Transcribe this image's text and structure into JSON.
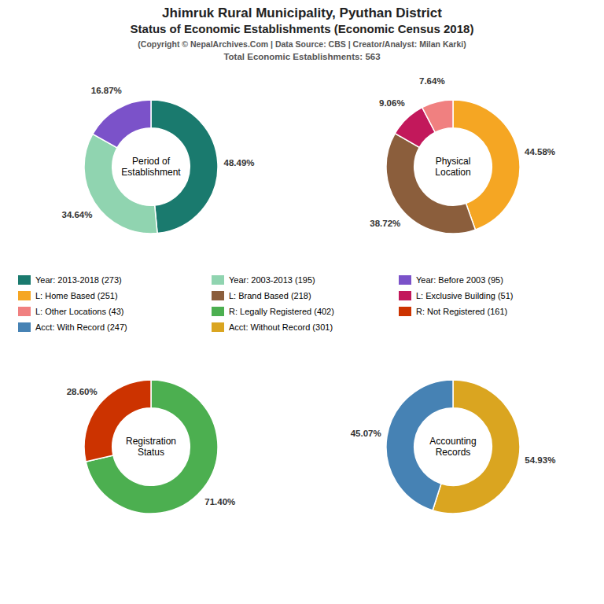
{
  "title": [
    "Jhimruk Rural Municipality, Pyuthan District",
    "Status of Economic Establishments (Economic Census 2018)"
  ],
  "subtitle": [
    "(Copyright © NepalArchives.Com | Data Source: CBS | Creator/Analyst: Milan Karki)",
    "Total Economic Establishments: 563"
  ],
  "chart_data": [
    {
      "type": "pie",
      "title": "Period of\nEstablishment",
      "values": [
        48.49,
        34.64,
        16.87
      ],
      "value_labels": [
        "48.49%",
        "34.64%",
        "16.87%"
      ],
      "colors": [
        "#1A7A6E",
        "#90D4B0",
        "#7B52C9"
      ],
      "data_labels": true
    },
    {
      "type": "pie",
      "title": "Physical\nLocation",
      "values": [
        44.58,
        38.72,
        9.06,
        7.64
      ],
      "value_labels": [
        "44.58%",
        "38.72%",
        "9.06%",
        "7.64%"
      ],
      "colors": [
        "#F5A623",
        "#8B5E3C",
        "#C2185B",
        "#F08080"
      ],
      "data_labels": true
    },
    {
      "type": "pie",
      "title": "Registration\nStatus",
      "values": [
        71.4,
        28.6
      ],
      "value_labels": [
        "71.40%",
        "28.60%"
      ],
      "colors": [
        "#4CAF50",
        "#CC3300"
      ],
      "data_labels": true
    },
    {
      "type": "pie",
      "title": "Accounting\nRecords",
      "values": [
        54.93,
        45.07
      ],
      "value_labels": [
        "54.93%",
        "45.07%"
      ],
      "colors": [
        "#DAA520",
        "#4682B4"
      ],
      "data_labels": true
    }
  ],
  "legend_items": [
    {
      "label": "Year: 2013-2018 (273)",
      "color": "#1A7A6E"
    },
    {
      "label": "Year: 2003-2013 (195)",
      "color": "#90D4B0"
    },
    {
      "label": "Year: Before 2003 (95)",
      "color": "#7B52C9"
    },
    {
      "label": "L: Home Based (251)",
      "color": "#F5A623"
    },
    {
      "label": "L: Brand Based (218)",
      "color": "#8B5E3C"
    },
    {
      "label": "L: Exclusive Building (51)",
      "color": "#C2185B"
    },
    {
      "label": "L: Other Locations (43)",
      "color": "#F08080"
    },
    {
      "label": "R: Legally Registered (402)",
      "color": "#4CAF50"
    },
    {
      "label": "R: Not Registered (161)",
      "color": "#CC3300"
    },
    {
      "label": "Acct: With Record (247)",
      "color": "#4682B4"
    },
    {
      "label": "Acct: Without Record (301)",
      "color": "#DAA520"
    }
  ]
}
